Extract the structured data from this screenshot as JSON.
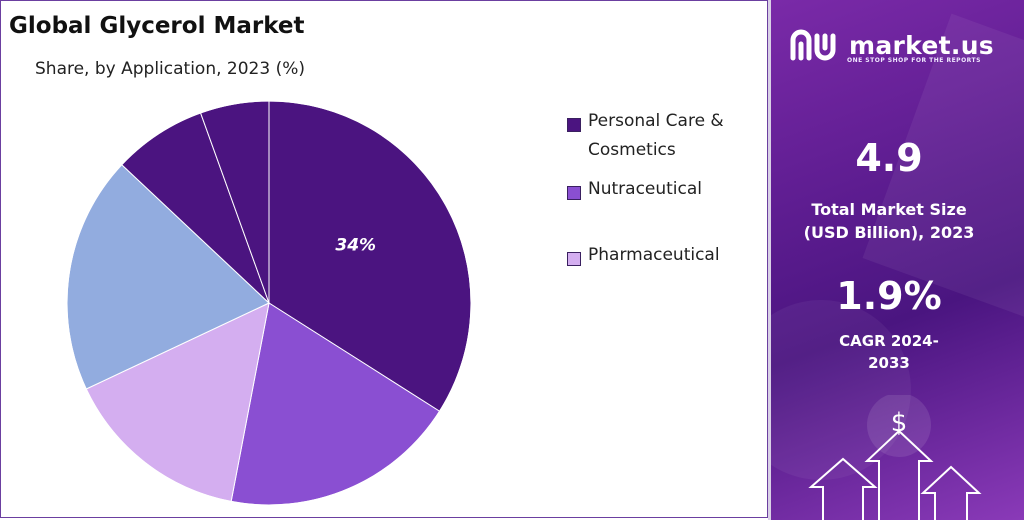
{
  "chart_data": {
    "type": "pie",
    "title": "Global Glycerol Market",
    "subtitle": "Share, by Application, 2023 (%)",
    "slices": [
      {
        "name": "Personal Care & Cosmetics",
        "value": 34,
        "color": "#4b1480",
        "label": "34%"
      },
      {
        "name": "Nutraceutical",
        "value": 19,
        "color": "#8a4fd2",
        "label": ""
      },
      {
        "name": "Pharmaceutical",
        "value": 15,
        "color": "#d4aef0",
        "label": ""
      },
      {
        "name": "",
        "value": 19,
        "color": "#92acdf",
        "label": ""
      },
      {
        "name": "",
        "value": 7.5,
        "color": "#4b1480",
        "label": ""
      },
      {
        "name": "",
        "value": 5.5,
        "color": "#4b1480",
        "label": ""
      }
    ],
    "legend": [
      {
        "label": "Personal Care & Cosmetics",
        "color": "#4b1480"
      },
      {
        "label": "Nutraceutical",
        "color": "#8a4fd2"
      },
      {
        "label": "Pharmaceutical",
        "color": "#d4aef0"
      }
    ],
    "legend_placement": "right"
  },
  "brand": {
    "name": "market.us",
    "tagline": "ONE STOP SHOP FOR THE REPORTS"
  },
  "metrics": {
    "market_size_value": "4.9",
    "market_size_label": "Total Market Size (USD Billion), 2023",
    "cagr_value": "1.9%",
    "cagr_label": "CAGR 2024-2033"
  },
  "decor": {
    "dollar_symbol": "$"
  }
}
